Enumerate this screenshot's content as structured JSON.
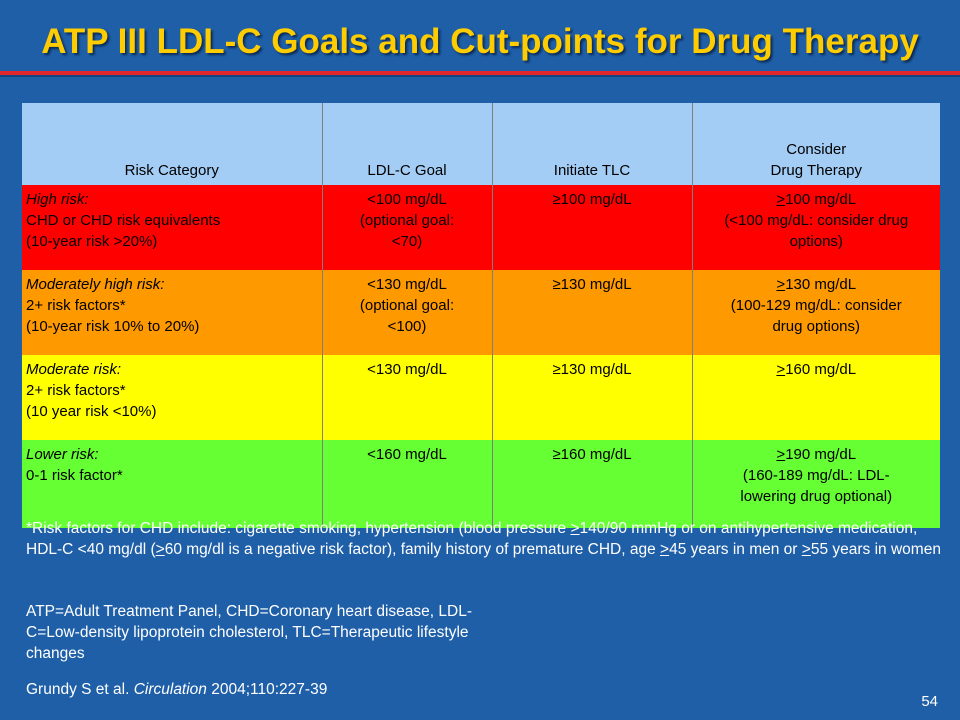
{
  "slide": {
    "title": "ATP III LDL-C Goals and Cut-points for Drug Therapy",
    "page_number": "54"
  },
  "table": {
    "headers": {
      "risk_category": "Risk Category",
      "ldl_goal": "LDL-C Goal",
      "initiate_tlc": "Initiate TLC",
      "drug_line1": "Consider",
      "drug_line2": "Drug Therapy"
    },
    "rows": [
      {
        "color": "#ff0000",
        "risk_name": "High risk:",
        "risk_line2": "CHD or CHD risk equivalents",
        "risk_line3": "(10-year risk >20%)",
        "goal_line1": "<100 mg/dL",
        "goal_line2": "(optional goal:",
        "goal_line3": "<70)",
        "tlc_symbol": "≥",
        "tlc_value": "100 mg/dL",
        "drug_symbol": ">",
        "drug_value": "100 mg/dL",
        "drug_line2": "(<100 mg/dL: consider drug",
        "drug_line3": "options)"
      },
      {
        "color": "#ff9900",
        "risk_name": "Moderately high risk:",
        "risk_line2": "2+ risk factors*",
        "risk_line3": "(10-year risk 10% to 20%)",
        "goal_line1": "<130 mg/dL",
        "goal_line2": "(optional goal:",
        "goal_line3": "<100)",
        "tlc_symbol": "≥",
        "tlc_value": "130 mg/dL",
        "drug_symbol": ">",
        "drug_value": "130 mg/dL",
        "drug_line2": "(100-129 mg/dL: consider",
        "drug_line3": "drug options)"
      },
      {
        "color": "#ffff00",
        "risk_name": "Moderate risk:",
        "risk_line2": "2+ risk factors*",
        "risk_line3": "(10 year risk <10%)",
        "goal_line1": "<130 mg/dL",
        "goal_line2": "",
        "goal_line3": "",
        "tlc_symbol": "≥",
        "tlc_value": "130 mg/dL",
        "drug_symbol": ">",
        "drug_value": "160 mg/dL",
        "drug_line2": "",
        "drug_line3": ""
      },
      {
        "color": "#66ff33",
        "risk_name": "Lower risk:",
        "risk_line2": "0-1 risk factor*",
        "risk_line3": "",
        "goal_line1": "<160 mg/dL",
        "goal_line2": "",
        "goal_line3": "",
        "tlc_symbol": "≥",
        "tlc_value": "160 mg/dL",
        "drug_symbol": ">",
        "drug_value": "190 mg/dL",
        "drug_line2": "(160-189 mg/dL: LDL-",
        "drug_line3": "lowering drug optional)"
      }
    ]
  },
  "footnote": {
    "p1": "*Risk factors for CHD include: cigarette smoking, hypertension (blood pressure ",
    "g1": ">",
    "p2": "140/90 mmHg or on antihypertensive medication, HDL-C <40 mg/dl (",
    "g2": ">",
    "p3": "60 mg/dl is a negative risk factor), family history of premature CHD, age ",
    "g3": ">",
    "p4": "45 years in men or ",
    "g4": ">",
    "p5": "55 years in women"
  },
  "abbreviations": "ATP=Adult Treatment Panel, CHD=Coronary heart disease, LDL-C=Low-density lipoprotein cholesterol, TLC=Therapeutic lifestyle changes",
  "citation": {
    "authors": "Grundy S et al. ",
    "journal": "Circulation",
    "details": " 2004;110:227-39"
  },
  "colors": {
    "background": "#1f5fa8",
    "title": "#ffcc00",
    "rule": "#e0262e",
    "header": "#a3cdf5"
  }
}
